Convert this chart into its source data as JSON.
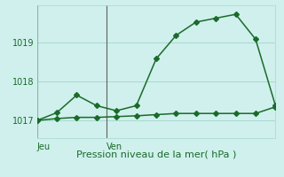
{
  "xlabel": "Pression niveau de la mer( hPa )",
  "background_color": "#cff0ec",
  "grid_color": "#a8d8d0",
  "line_color": "#1a6b2a",
  "vline_color": "#606060",
  "ylim": [
    1016.55,
    1019.95
  ],
  "yticks": [
    1017,
    1018,
    1019
  ],
  "xlim": [
    0,
    12
  ],
  "series1_x": [
    0,
    1,
    2,
    3,
    4,
    5,
    6,
    7,
    8,
    9,
    10,
    11,
    12
  ],
  "series1_y": [
    1017.0,
    1017.2,
    1017.65,
    1017.38,
    1017.25,
    1017.38,
    1018.58,
    1019.18,
    1019.52,
    1019.62,
    1019.72,
    1019.08,
    1017.38
  ],
  "series2_x": [
    0,
    1,
    2,
    3,
    4,
    5,
    6,
    7,
    8,
    9,
    10,
    11,
    12
  ],
  "series2_y": [
    1017.0,
    1017.05,
    1017.08,
    1017.08,
    1017.1,
    1017.12,
    1017.15,
    1017.18,
    1017.18,
    1017.18,
    1017.18,
    1017.18,
    1017.35
  ],
  "jeu_x": 0,
  "ven_x": 3.5,
  "jeu_label": "Jeu",
  "ven_label": "Ven",
  "xlabel_fontsize": 8,
  "ytick_fontsize": 7,
  "xtick_fontsize": 7
}
